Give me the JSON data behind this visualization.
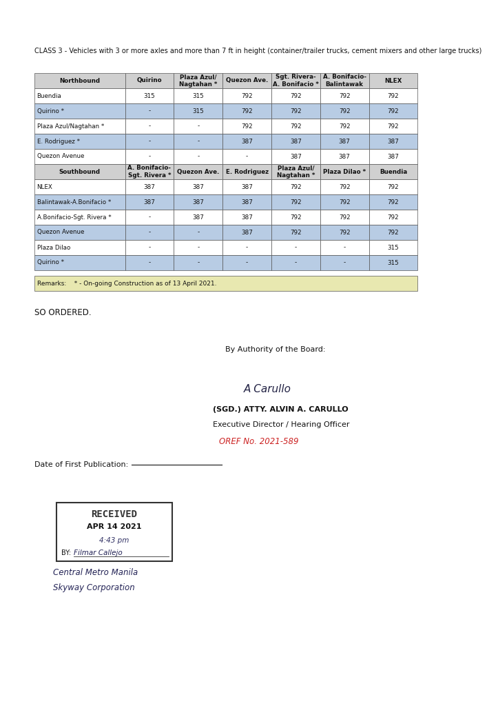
{
  "class_header": "CLASS 3 - Vehicles with 3 or more axles and more than 7 ft in height (container/trailer trucks, cement mixers and other large trucks)",
  "northbound_headers": [
    "Northbound",
    "Quirino",
    "Plaza Azul/\nNagtahan *",
    "Quezon Ave.",
    "Sgt. Rivera-\nA. Bonifacio *",
    "A. Bonifacio-\nBalintawak",
    "NLEX"
  ],
  "northbound_rows": [
    [
      "Buendia",
      "315",
      "315",
      "792",
      "792",
      "792",
      "792"
    ],
    [
      "Quirino *",
      "-",
      "315",
      "792",
      "792",
      "792",
      "792"
    ],
    [
      "Plaza Azul/Nagtahan *",
      "-",
      "-",
      "792",
      "792",
      "792",
      "792"
    ],
    [
      "E. Rodriguez *",
      "-",
      "-",
      "387",
      "387",
      "387",
      "387"
    ],
    [
      "Quezon Avenue",
      "-",
      "-",
      "-",
      "387",
      "387",
      "387"
    ]
  ],
  "northbound_shaded": [
    1,
    3
  ],
  "southbound_headers": [
    "Southbound",
    "A. Bonifacio-\nSgt. Rivera *",
    "Quezon Ave.",
    "E. Rodriguez",
    "Plaza Azul/\nNagtahan *",
    "Plaza Dilao *",
    "Buendia"
  ],
  "southbound_rows": [
    [
      "NLEX",
      "387",
      "387",
      "387",
      "792",
      "792",
      "792"
    ],
    [
      "Balintawak-A.Bonifacio *",
      "387",
      "387",
      "387",
      "792",
      "792",
      "792"
    ],
    [
      "A.Bonifacio-Sgt. Rivera *",
      "-",
      "387",
      "387",
      "792",
      "792",
      "792"
    ],
    [
      "Quezon Avenue",
      "-",
      "-",
      "387",
      "792",
      "792",
      "792"
    ],
    [
      "Plaza Dilao",
      "-",
      "-",
      "-",
      "-",
      "-",
      "315"
    ],
    [
      "Quirino *",
      "-",
      "-",
      "-",
      "-",
      "-",
      "315"
    ]
  ],
  "southbound_shaded": [
    1,
    3,
    5
  ],
  "remarks": "Remarks:    * - On-going Construction as of 13 April 2021.",
  "so_ordered": "SO ORDERED.",
  "authority_line": "By Authority of the Board:",
  "signatory_name": "(SGD.) ATTY. ALVIN A. CARULLO",
  "signatory_title": "Executive Director / Hearing Officer",
  "oref": "OREF No. 2021-589",
  "date_label": "Date of First Publication:",
  "stamp_received": "RECEIVED",
  "stamp_date": "APR 14 2021",
  "stamp_time": "4:43 pm",
  "stamp_by_label": "BY:",
  "stamp_by_name": "Filmar Callejo",
  "stamp_org1": "Central Metro Manila",
  "stamp_org2": "Skyway Corporation",
  "bg_color": "#ffffff",
  "table_header_bg": "#d0d0d0",
  "table_shaded_bg": "#b8cce4",
  "table_border_color": "#555555",
  "text_color": "#111111",
  "remarks_bg": "#e8e8b0"
}
